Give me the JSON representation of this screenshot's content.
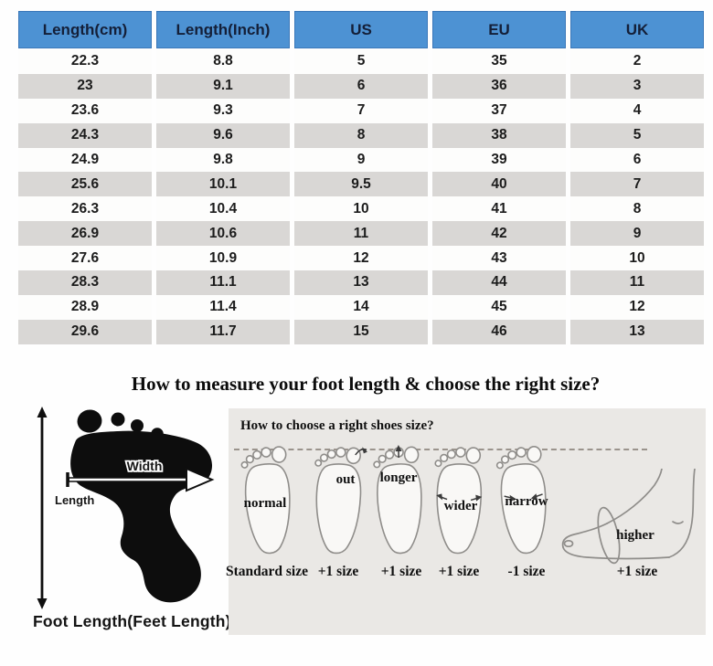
{
  "colors": {
    "header_bg": "#4d92d3",
    "header_border": "#3a77b8",
    "header_text": "#141f38",
    "row_bg": "#fdfdfc",
    "row_alt_bg": "#d9d7d5",
    "cell_text": "#1c1c1c",
    "panel_bg": "#eae8e5"
  },
  "size_table": {
    "headers": [
      "Length(cm)",
      "Length(Inch)",
      "US",
      "EU",
      "UK"
    ],
    "rows": [
      [
        "22.3",
        "8.8",
        "5",
        "35",
        "2"
      ],
      [
        "23",
        "9.1",
        "6",
        "36",
        "3"
      ],
      [
        "23.6",
        "9.3",
        "7",
        "37",
        "4"
      ],
      [
        "24.3",
        "9.6",
        "8",
        "38",
        "5"
      ],
      [
        "24.9",
        "9.8",
        "9",
        "39",
        "6"
      ],
      [
        "25.6",
        "10.1",
        "9.5",
        "40",
        "7"
      ],
      [
        "26.3",
        "10.4",
        "10",
        "41",
        "8"
      ],
      [
        "26.9",
        "10.6",
        "11",
        "42",
        "9"
      ],
      [
        "27.6",
        "10.9",
        "12",
        "43",
        "10"
      ],
      [
        "28.3",
        "11.1",
        "13",
        "44",
        "11"
      ],
      [
        "28.9",
        "11.4",
        "14",
        "45",
        "12"
      ],
      [
        "29.6",
        "11.7",
        "15",
        "46",
        "13"
      ]
    ]
  },
  "measure_section": {
    "title": "How to measure your foot length & choose the right size?",
    "foot_diagram": {
      "length_label": "Length",
      "width_label": "Width",
      "caption": "Foot Length(Feet Length)"
    },
    "choose_panel": {
      "title": "How to choose a right shoes size?",
      "items": [
        {
          "label": "normal",
          "size": "Standard size"
        },
        {
          "label": "out",
          "size": "+1 size"
        },
        {
          "label": "longer",
          "size": "+1 size"
        },
        {
          "label": "wider",
          "size": "+1 size"
        },
        {
          "label": "narrow",
          "size": "-1 size"
        },
        {
          "label": "higher",
          "size": "+1 size"
        }
      ]
    }
  }
}
